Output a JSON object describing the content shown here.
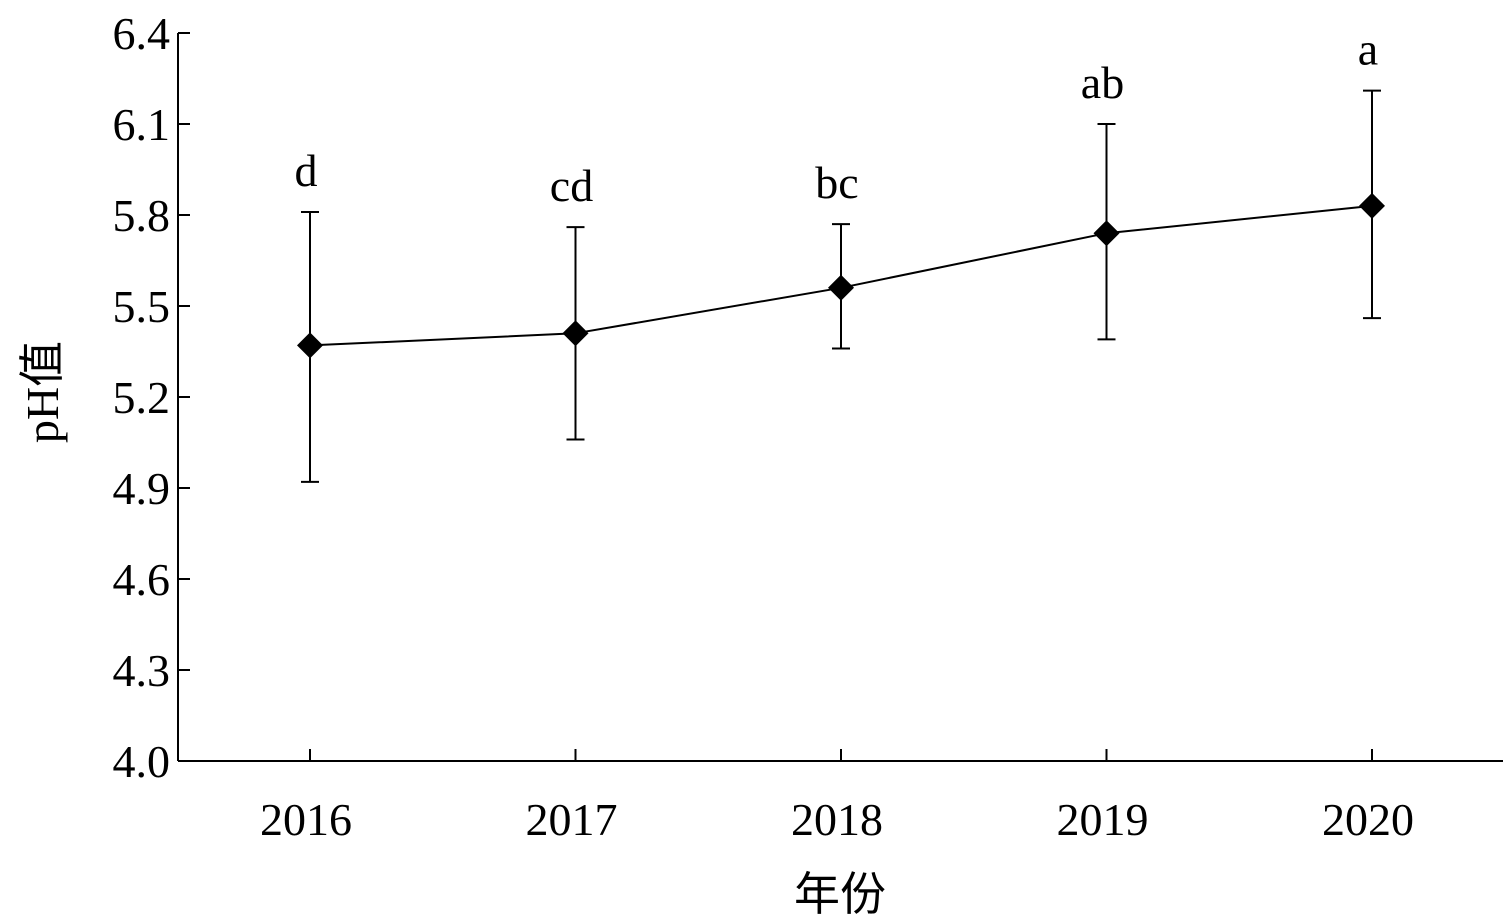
{
  "chart_data": {
    "type": "line",
    "title": "",
    "xlabel": "年份",
    "ylabel": "pH值",
    "ylim": [
      4.0,
      6.4
    ],
    "yticks": [
      "4.0",
      "4.3",
      "4.6",
      "4.9",
      "5.2",
      "5.5",
      "5.8",
      "6.1",
      "6.4"
    ],
    "categories": [
      "2016",
      "2017",
      "2018",
      "2019",
      "2020"
    ],
    "series": [
      {
        "marker": "diamond",
        "color": "#000000",
        "values": [
          5.37,
          5.41,
          5.56,
          5.74,
          5.83
        ],
        "error_low": [
          4.92,
          5.06,
          5.36,
          5.39,
          5.46
        ],
        "error_high": [
          5.81,
          5.76,
          5.77,
          6.1,
          6.21
        ],
        "significance_labels": [
          "d",
          "cd",
          "bc",
          "ab",
          "a"
        ]
      }
    ],
    "grid": false,
    "legend": "none"
  }
}
